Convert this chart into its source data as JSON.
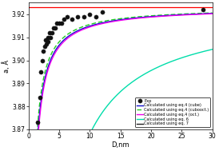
{
  "title": "",
  "xlabel": "D,nm",
  "ylabel": "a, Å",
  "xlim": [
    0,
    30
  ],
  "ylim": [
    3.87,
    3.925
  ],
  "yticks": [
    3.87,
    3.88,
    3.89,
    3.9,
    3.91,
    3.92
  ],
  "xticks": [
    0,
    5,
    10,
    15,
    20,
    25,
    30
  ],
  "a_bulk": 3.9231,
  "exp_x": [
    1.5,
    1.8,
    2.0,
    2.2,
    2.4,
    2.6,
    2.7,
    2.9,
    3.1,
    3.2,
    3.4,
    3.6,
    3.8,
    4.0,
    4.3,
    4.6,
    5.0,
    5.4,
    5.8,
    6.3,
    7.0,
    8.0,
    9.0,
    10.0,
    11.0,
    12.0,
    28.5
  ],
  "exp_y": [
    3.873,
    3.884,
    3.895,
    3.9,
    3.904,
    3.906,
    3.909,
    3.907,
    3.91,
    3.908,
    3.912,
    3.91,
    3.912,
    3.914,
    3.914,
    3.916,
    3.916,
    3.916,
    3.918,
    3.919,
    3.918,
    3.919,
    3.919,
    3.92,
    3.919,
    3.921,
    3.922
  ],
  "line_colors": {
    "cube": "#1010cc",
    "cubooct": "#22cc22",
    "oct": "#ee00ee",
    "eq6": "#00ddaa",
    "eq7": "#222222"
  },
  "curve_params": {
    "k_cube": 0.082,
    "k_cubooct": 0.075,
    "k_oct": 0.086,
    "k_eq6": 0.55,
    "k_eq7_A": 3.5,
    "k_eq7_n": 0.75,
    "D_eq6_start": 4.2,
    "D_eq7_start": 10.0
  },
  "legend_labels": {
    "exp": "Exp",
    "cube": "Calculated using eq.4 (cube)",
    "cubooct": "Calculated using eq.4 (cubooct.)",
    "oct": "Calculated using eq.4 (oct.)",
    "eq6": "Calculated using eq. 6",
    "eq7": "Calculated using eq. 7"
  },
  "background_color": "#ffffff"
}
